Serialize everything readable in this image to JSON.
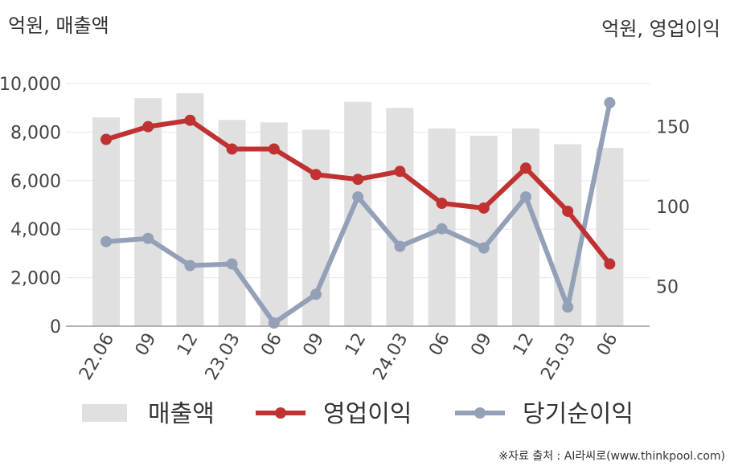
{
  "units": {
    "left": "억원, 매출액",
    "right": "억원, 영업이익"
  },
  "source": "※자료 출처 : AI라씨로(www.thinkpool.com)",
  "colors": {
    "revenue": "#e0e0e0",
    "operating_profit": "#c03232",
    "net_income": "#94a0b8",
    "grid": "#e6e6e6",
    "axis": "#999999"
  },
  "chart_data": {
    "type": "bar+line",
    "categories": [
      "22.06",
      "09",
      "12",
      "23.03",
      "06",
      "09",
      "12",
      "24.03",
      "06",
      "09",
      "12",
      "25.03",
      "06"
    ],
    "left_axis": {
      "ylim": [
        0,
        10000
      ],
      "ticks": [
        "0",
        "2,000",
        "4,000",
        "6,000",
        "8,000",
        "10,000"
      ],
      "tick_values": [
        0,
        2000,
        4000,
        6000,
        8000,
        10000
      ]
    },
    "right_axis": {
      "ylim": [
        25,
        177
      ],
      "ticks": [
        "50",
        "100",
        "150"
      ],
      "tick_values": [
        50,
        100,
        150
      ]
    },
    "grid": true,
    "legend_position": "bottom",
    "series": [
      {
        "name": "매출액",
        "type": "bar",
        "axis": "left",
        "values": [
          8600,
          9400,
          9600,
          8500,
          8400,
          8100,
          9250,
          9000,
          8150,
          7850,
          8150,
          7500,
          7350
        ]
      },
      {
        "name": "영업이익",
        "type": "line",
        "axis": "right",
        "values": [
          142,
          150,
          154,
          136,
          136,
          120,
          117,
          122,
          102,
          99,
          124,
          97,
          64
        ]
      },
      {
        "name": "당기순이익",
        "type": "line",
        "axis": "right",
        "values": [
          78,
          80,
          63,
          64,
          27,
          45,
          106,
          75,
          86,
          74,
          106,
          37,
          165
        ]
      }
    ]
  }
}
